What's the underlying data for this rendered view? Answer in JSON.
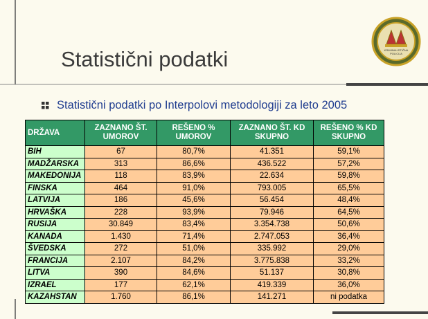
{
  "header": {
    "title": "Statistični podatki"
  },
  "logo": {
    "lines": [
      "KRIMINALISTIČNA",
      "POLICIJA"
    ]
  },
  "bullet": "Statistični podatki po Interpolovi metodologiji za leto 2005",
  "table": {
    "header": [
      "DRŽAVA",
      "ZAZNANO ŠT. UMOROV",
      "REŠENO % UMOROV",
      "ZAZNANO ŠT. KD SKUPNO",
      "REŠENO % KD SKUPNO"
    ],
    "rows": [
      [
        "BIH",
        "67",
        "80,7%",
        "41.351",
        "59,1%"
      ],
      [
        "MADŽARSKA",
        "313",
        "86,6%",
        "436.522",
        "57,2%"
      ],
      [
        "MAKEDONIJA",
        "118",
        "83,9%",
        "22.634",
        "59,8%"
      ],
      [
        "FINSKA",
        "464",
        "91,0%",
        "793.005",
        "65,5%"
      ],
      [
        "LATVIJA",
        "186",
        "45,6%",
        "56.454",
        "48,4%"
      ],
      [
        "HRVAŠKA",
        "228",
        "93,9%",
        "79.946",
        "64,5%"
      ],
      [
        "RUSIJA",
        "30.849",
        "83,4%",
        "3.354.738",
        "50,6%"
      ],
      [
        "KANADA",
        "1.430",
        "71,4%",
        "2.747.053",
        "36,4%"
      ],
      [
        "ŠVEDSKA",
        "272",
        "51,0%",
        "335.992",
        "29,0%"
      ],
      [
        "FRANCIJA",
        "2.107",
        "84,2%",
        "3.775.838",
        "33,2%"
      ],
      [
        "LITVA",
        "390",
        "84,6%",
        "51.137",
        "30,8%"
      ],
      [
        "IZRAEL",
        "177",
        "62,1%",
        "419.339",
        "36,0%"
      ],
      [
        "KAZAHSTAN",
        "1.760",
        "86,1%",
        "141.271",
        "ni podatka"
      ]
    ]
  }
}
